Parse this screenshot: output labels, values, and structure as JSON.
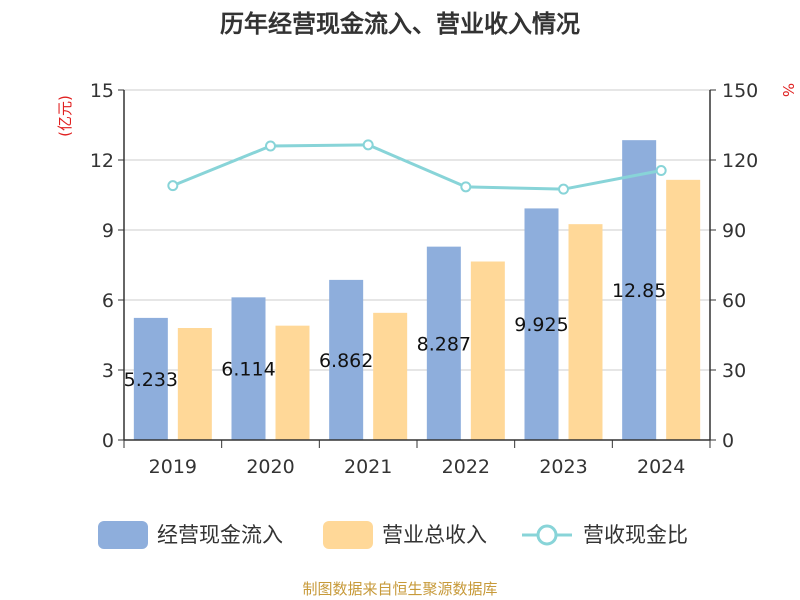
{
  "chart_data": {
    "type": "bar",
    "title": "历年经营现金流入、营业收入情况",
    "categories": [
      "2019",
      "2020",
      "2021",
      "2022",
      "2023",
      "2024"
    ],
    "series": [
      {
        "name": "经营现金流入",
        "type": "bar",
        "axis": "left",
        "color": "#8eaedc",
        "values": [
          5.233,
          6.114,
          6.862,
          8.287,
          9.925,
          12.85
        ],
        "labels": [
          "5.233",
          "6.114",
          "6.862",
          "8.287",
          "9.925",
          "12.85"
        ]
      },
      {
        "name": "营业总收入",
        "type": "bar",
        "axis": "left",
        "color": "#ffd898",
        "values": [
          4.8,
          4.9,
          5.45,
          7.65,
          9.25,
          11.15
        ]
      },
      {
        "name": "营收现金比",
        "type": "line",
        "axis": "right",
        "color": "#88d4d8",
        "values": [
          109,
          126,
          126.5,
          108.5,
          107.5,
          115.5
        ]
      }
    ],
    "y_left": {
      "label": "(亿元)",
      "ylim": [
        0,
        15
      ],
      "ticks": [
        "0",
        "3",
        "6",
        "9",
        "12",
        "15"
      ]
    },
    "y_right": {
      "label": "%",
      "ylim": [
        0,
        150
      ],
      "ticks": [
        "0",
        "30",
        "60",
        "90",
        "120",
        "150"
      ]
    },
    "grid": true,
    "legend": "bottom"
  },
  "source": "制图数据来自恒生聚源数据库"
}
